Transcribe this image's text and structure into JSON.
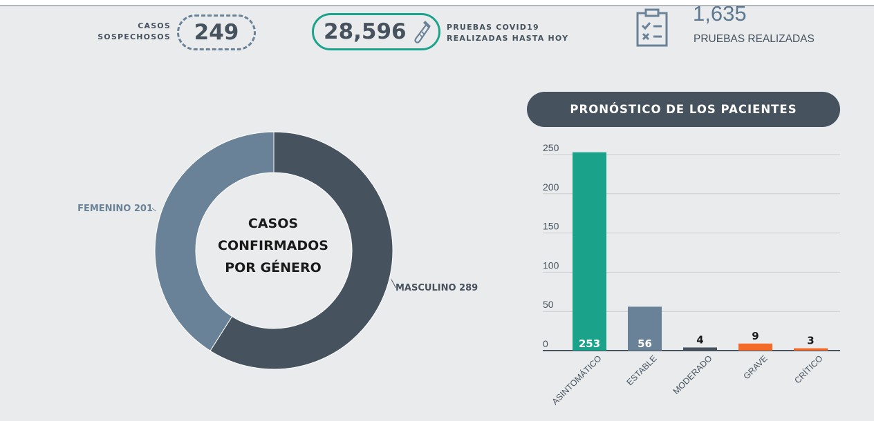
{
  "top": {
    "casos_sospechosos_label_1": "CASOS",
    "casos_sospechosos_label_2": "SOSPECHOSOS",
    "casos_sospechosos_value": "249",
    "pruebas_value": "28,596",
    "pruebas_label_1": "PRUEBAS COVID19",
    "pruebas_label_2": "REALIZADAS HASTA HOY",
    "realizadas_value": "1,635",
    "realizadas_label": "PRUEBAS REALIZADAS"
  },
  "icons": [
    "pipette-icon",
    "clipboard-checklist-icon"
  ],
  "colors": {
    "dark_slate": "#46535f",
    "steel_blue": "#6a8297",
    "teal": "#1aa38a",
    "orange": "#f26b2b",
    "background": "#eaebec"
  },
  "chart_data": [
    {
      "type": "pie",
      "title": "CASOS CONFIRMADOS POR GÉNERO",
      "title_lines": [
        "CASOS",
        "CONFIRMADOS",
        "POR GÉNERO"
      ],
      "donut": true,
      "slices": [
        {
          "label": "MASCULINO 289",
          "name": "MASCULINO",
          "value": 289,
          "color": "#46535f"
        },
        {
          "label": "FEMENINO 201",
          "name": "FEMENINO",
          "value": 201,
          "color": "#6a8297"
        }
      ]
    },
    {
      "type": "bar",
      "title": "PRONÓSTICO DE LOS PACIENTES",
      "categories": [
        "ASINTOMÁTICO",
        "ESTABLE",
        "MODERADO",
        "GRAVE",
        "CRÍTICO"
      ],
      "values": [
        253,
        56,
        4,
        9,
        3
      ],
      "colors": [
        "#1aa38a",
        "#6a8297",
        "#46535f",
        "#f26b2b",
        "#f26b2b"
      ],
      "yticks": [
        "0",
        "50",
        "100",
        "150",
        "200",
        "250"
      ],
      "ylim": [
        0,
        250
      ],
      "grid": true
    }
  ]
}
